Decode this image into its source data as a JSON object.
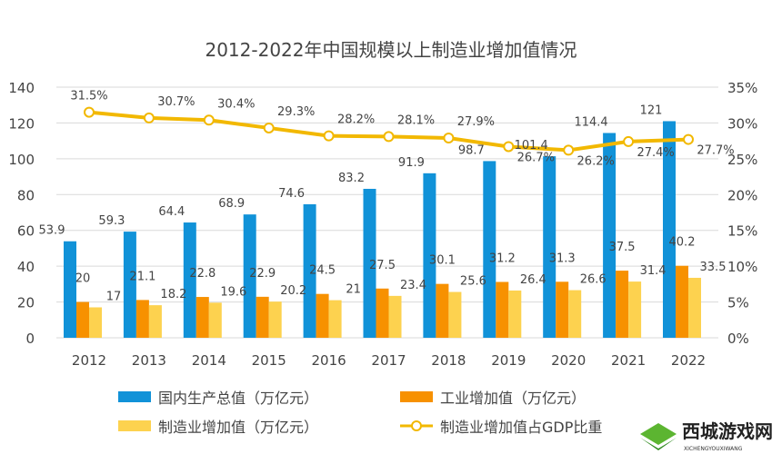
{
  "chart_data": {
    "type": "bar",
    "title": "2012-2022年中国规模以上制造业增加值情况",
    "categories": [
      "2012",
      "2013",
      "2014",
      "2015",
      "2016",
      "2017",
      "2018",
      "2019",
      "2020",
      "2021",
      "2022"
    ],
    "ylim": [
      0,
      140
    ],
    "yticks": [
      0,
      20,
      40,
      60,
      80,
      100,
      120,
      140
    ],
    "y2lim": [
      0,
      35
    ],
    "y2ticks": [
      "0%",
      "5%",
      "10%",
      "15%",
      "20%",
      "25%",
      "30%",
      "35%"
    ],
    "grid": true,
    "legend_position": "bottom",
    "series": [
      {
        "name": "国内生产总值（万亿元）",
        "type": "bar",
        "color": "#1192d8",
        "values": [
          53.9,
          59.3,
          64.4,
          68.9,
          74.6,
          83.2,
          91.9,
          98.7,
          101.4,
          114.4,
          121
        ],
        "labels": [
          "53.9",
          "59.3",
          "64.4",
          "68.9",
          "74.6",
          "83.2",
          "91.9",
          "98.7",
          "101.4",
          "114.4",
          "121"
        ]
      },
      {
        "name": "工业增加值（万亿元）",
        "type": "bar",
        "color": "#f79100",
        "values": [
          20,
          21.1,
          22.8,
          22.9,
          24.5,
          27.5,
          30.1,
          31.2,
          31.3,
          37.5,
          40.2
        ],
        "labels": [
          "20",
          "21.1",
          "22.8",
          "22.9",
          "24.5",
          "27.5",
          "30.1",
          "31.2",
          "31.3",
          "37.5",
          "40.2"
        ]
      },
      {
        "name": "制造业增加值（万亿元）",
        "type": "bar",
        "color": "#fdd24f",
        "values": [
          17,
          18.2,
          19.6,
          20.2,
          21,
          23.4,
          25.6,
          26.4,
          26.6,
          31.4,
          33.5
        ],
        "labels": [
          "17",
          "18.2",
          "19.6",
          "20.2",
          "21",
          "23.4",
          "25.6",
          "26.4",
          "26.6",
          "31.4",
          "33.5"
        ]
      },
      {
        "name": "制造业增加值占GDP比重",
        "type": "line",
        "axis": "right",
        "color": "#f2b800",
        "values": [
          31.5,
          30.7,
          30.4,
          29.3,
          28.2,
          28.1,
          27.9,
          26.7,
          26.2,
          27.4,
          27.7
        ],
        "labels": [
          "31.5%",
          "30.7%",
          "30.4%",
          "29.3%",
          "28.2%",
          "28.1%",
          "27.9%",
          "26.7%",
          "26.2%",
          "27.4%",
          "27.7%"
        ]
      }
    ]
  },
  "watermark": {
    "text": "西城游戏网",
    "subtext": "XICHENGYOUXIWANG"
  }
}
